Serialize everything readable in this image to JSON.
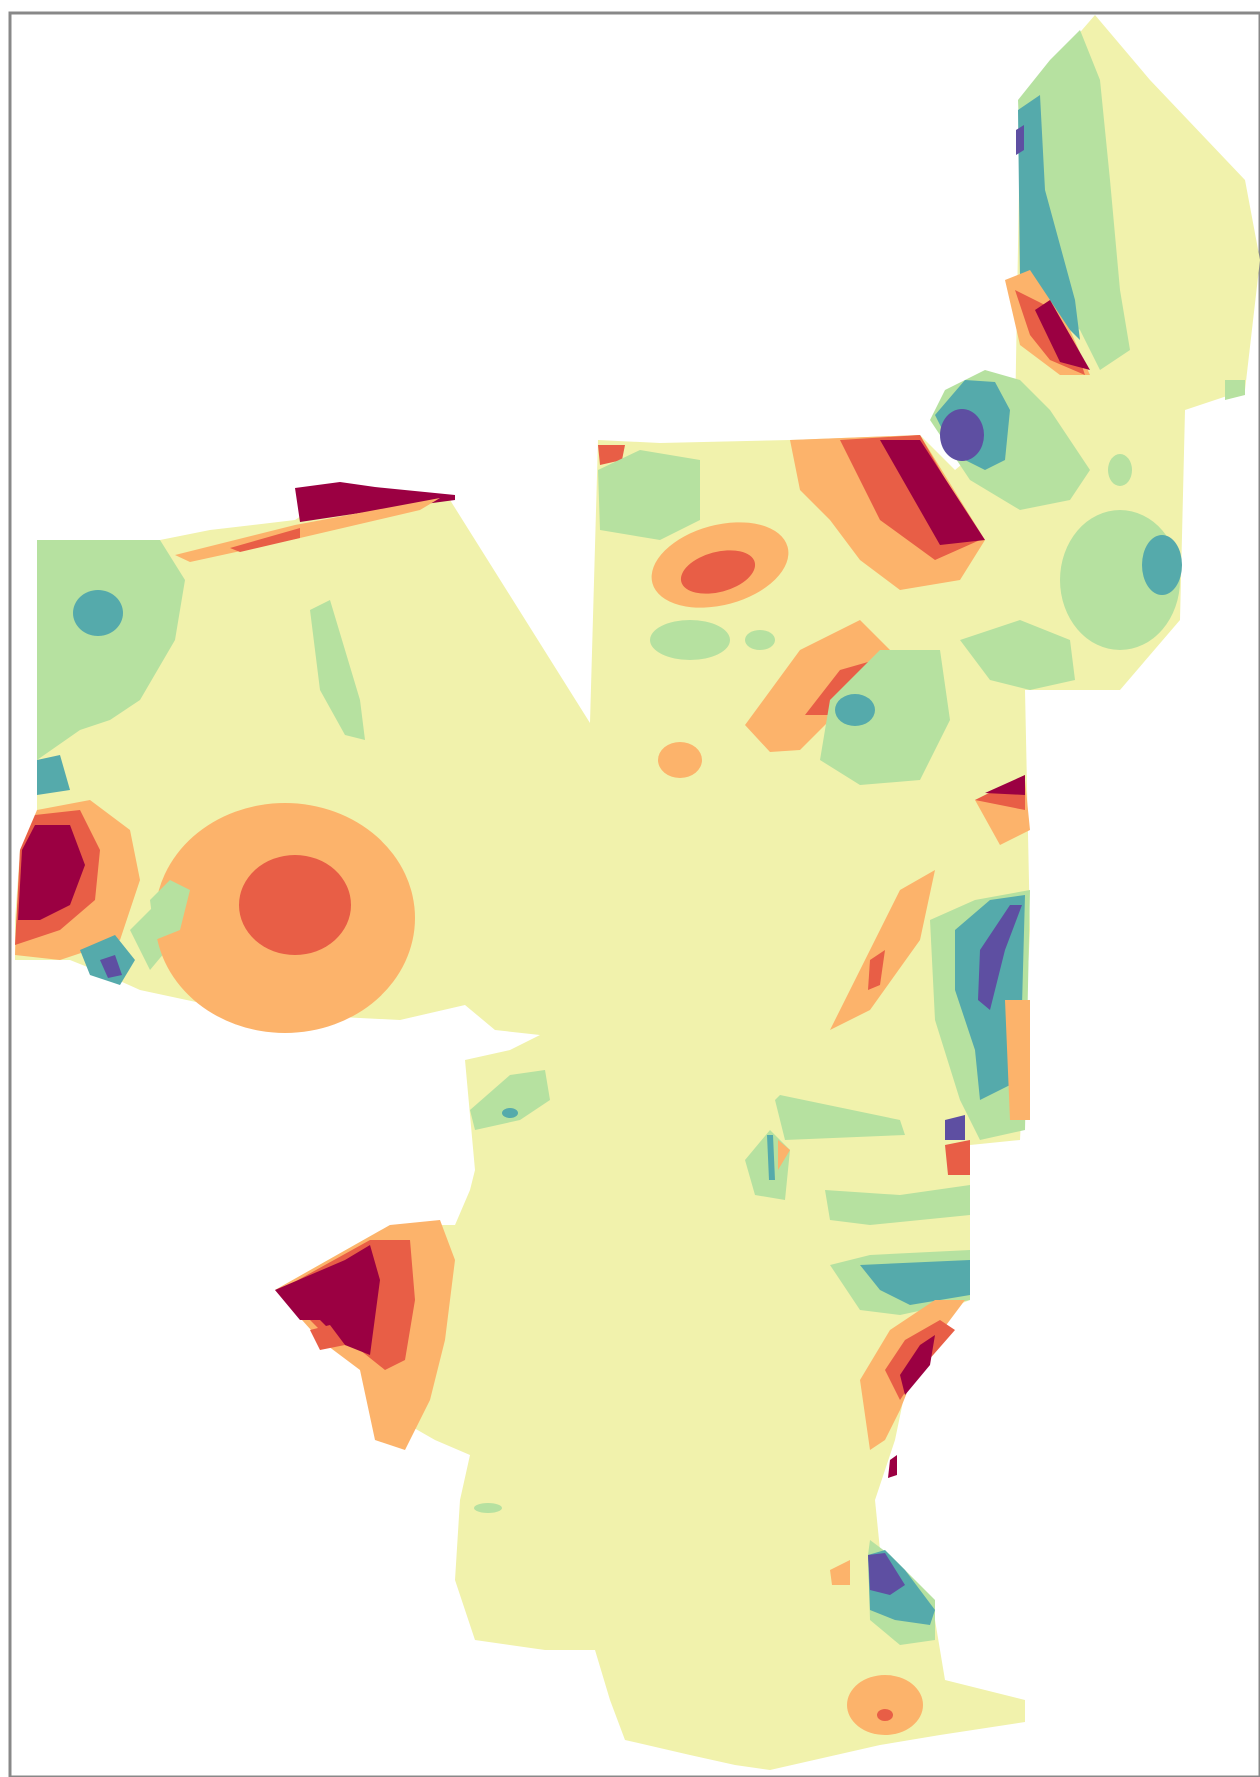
{
  "map": {
    "type": "classified raster surface",
    "palette": {
      "class_1": "#5e4fa2",
      "class_2": "#55aaab",
      "class_3": "#b6e1a0",
      "class_4": "#f1f2ac",
      "class_5": "#fcb36b",
      "class_6": "#e85e46",
      "class_7": "#9b0042"
    },
    "background": "#ffffff",
    "frame_color": "#888888"
  }
}
